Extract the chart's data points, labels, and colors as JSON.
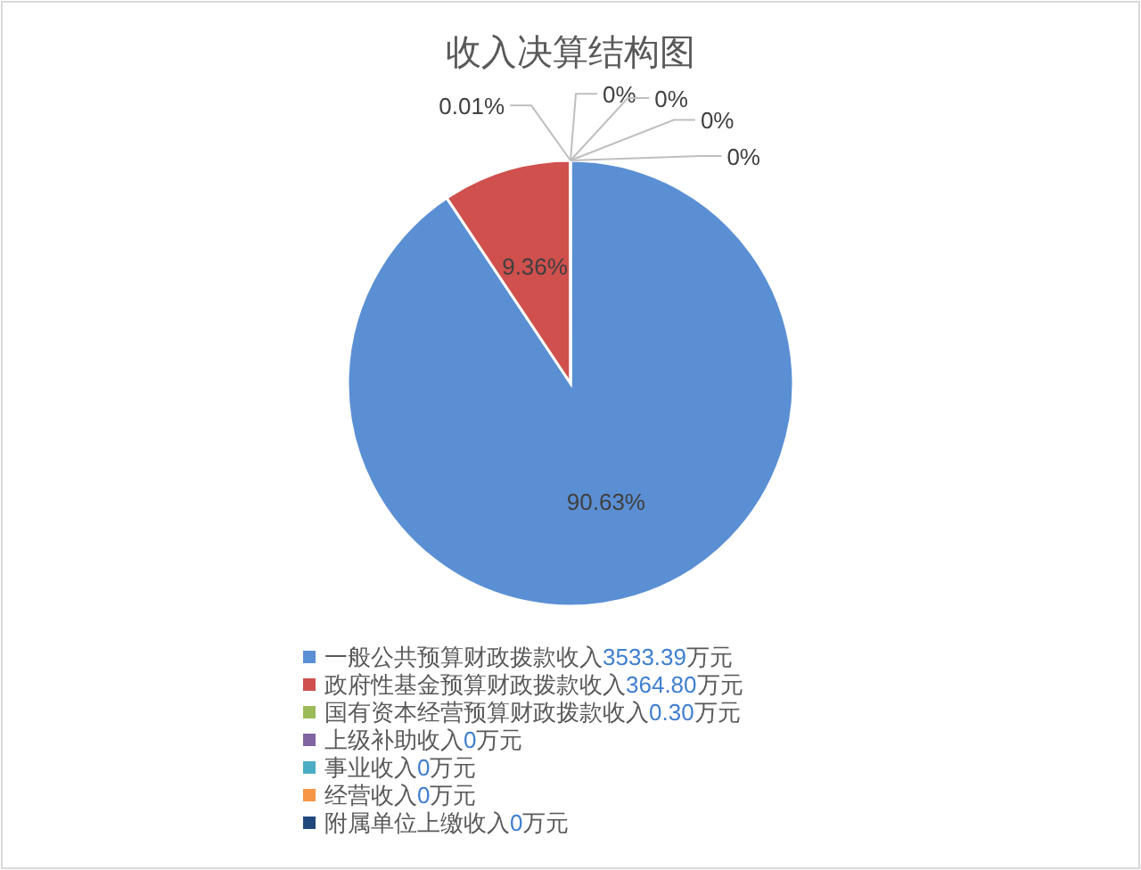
{
  "chart_data": {
    "type": "pie",
    "title": "收入决算结构图",
    "categories": [
      "一般公共预算财政拨款收入3533.39万元",
      "政府性基金预算财政拨款收入364.80万元",
      "国有资本经营预算财政拨款收入0.30万元",
      "上级补助收入0万元",
      "事业收入0万元",
      "经营收入0万元",
      "附属单位上缴收入0万元"
    ],
    "values": [
      90.63,
      9.36,
      0.01,
      0,
      0,
      0,
      0
    ],
    "colors": [
      "#5b8fd4",
      "#cf504d",
      "#9bbb59",
      "#8064a2",
      "#4bacc6",
      "#f79646",
      "#1f497d"
    ],
    "value_labels": [
      "90.63%",
      "9.36%",
      "0.01%",
      "0%",
      "0%",
      "0%",
      "0%"
    ],
    "legend": "bottom"
  }
}
